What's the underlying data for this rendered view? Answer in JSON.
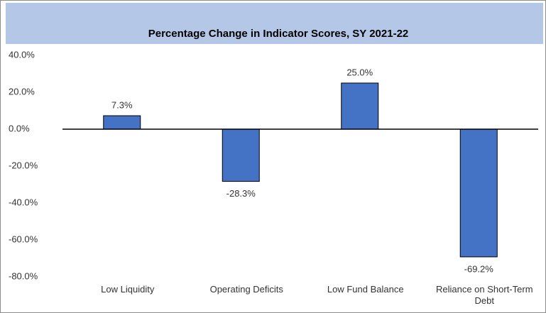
{
  "chart_data": {
    "type": "bar",
    "title": "Percentage Change in Indicator Scores, SY 2021-22",
    "categories": [
      "Low Liquidity",
      "Operating Deficits",
      "Low Fund Balance",
      "Reliance on Short-Term Debt"
    ],
    "values": [
      7.3,
      -28.3,
      25.0,
      -69.2
    ],
    "value_labels": [
      "7.3%",
      "-28.3%",
      "25.0%",
      "-69.2%"
    ],
    "color": "#4472c4",
    "ylim": [
      -80,
      40
    ],
    "yticks": [
      {
        "value": 40,
        "label": "40.0%"
      },
      {
        "value": 20,
        "label": "20.0%"
      },
      {
        "value": 0,
        "label": "0.0%"
      },
      {
        "value": -20,
        "label": "-20.0%"
      },
      {
        "value": -40,
        "label": "-40.0%"
      },
      {
        "value": -60,
        "label": "-60.0%"
      },
      {
        "value": -80,
        "label": "-80.0%"
      }
    ],
    "grid": false
  }
}
